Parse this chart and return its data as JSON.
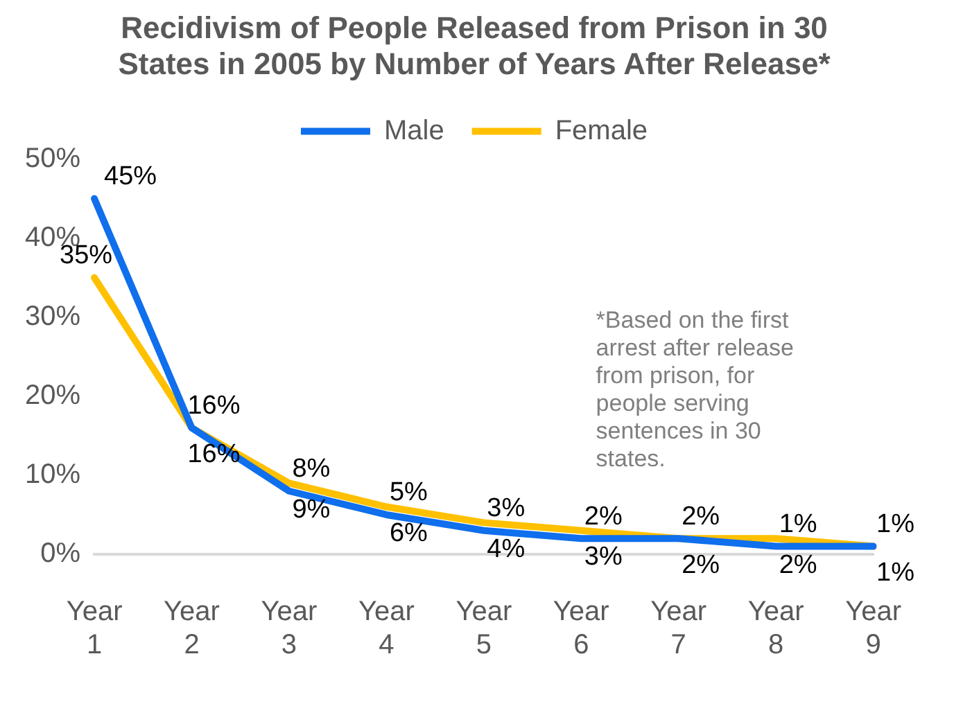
{
  "chart_data": {
    "type": "line",
    "title": "Recidivism of People Released from Prison in 30 States in 2005 by Number of Years After Release*",
    "categories": [
      "Year 1",
      "Year 2",
      "Year 3",
      "Year 4",
      "Year 5",
      "Year 6",
      "Year 7",
      "Year 8",
      "Year 9"
    ],
    "series": [
      {
        "name": "Male",
        "color": "#0f6fec",
        "values": [
          45,
          16,
          8,
          5,
          3,
          2,
          2,
          1,
          1
        ],
        "value_labels": [
          "45%",
          "16%",
          "8%",
          "5%",
          "3%",
          "2%",
          "2%",
          "1%",
          "1%"
        ]
      },
      {
        "name": "Female",
        "color": "#ffc000",
        "values": [
          35,
          16,
          9,
          6,
          4,
          3,
          2,
          2,
          1
        ],
        "value_labels": [
          "35%",
          "16%",
          "9%",
          "6%",
          "4%",
          "3%",
          "2%",
          "2%",
          "1%"
        ]
      }
    ],
    "ylim": [
      0,
      50
    ],
    "yticks": [
      {
        "value": 0,
        "label": "0%"
      },
      {
        "value": 10,
        "label": "10%"
      },
      {
        "value": 20,
        "label": "20%"
      },
      {
        "value": 30,
        "label": "30%"
      },
      {
        "value": 40,
        "label": "40%"
      },
      {
        "value": 50,
        "label": "50%"
      }
    ],
    "grid": false,
    "legend": "top",
    "marker": "none",
    "line_style": "solid",
    "annotations": [
      "*Based on the first arrest after release from prison, for people serving sentences in 30 states."
    ]
  }
}
